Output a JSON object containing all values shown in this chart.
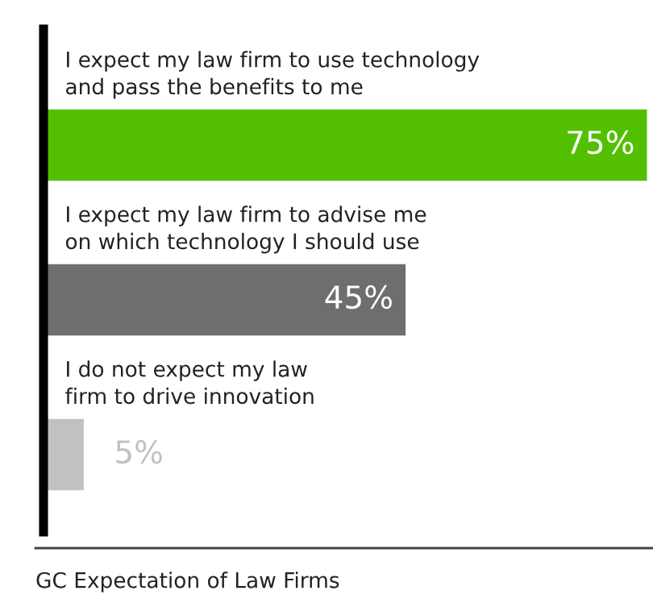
{
  "chart_data": {
    "type": "bar",
    "orientation": "horizontal",
    "title": "GC Expectation of Law Firms",
    "categories": [
      "I expect my law firm to use technology\nand pass the benefits to me",
      "I expect my law firm to advise me\non which technology I should use",
      "I do not expect my law\nfirm to drive innovation"
    ],
    "values": [
      75,
      45,
      5
    ],
    "colors": [
      "#52c000",
      "#6d6e70",
      "#c0c1c3"
    ],
    "value_labels": [
      "75%",
      "45%",
      "5%"
    ]
  }
}
